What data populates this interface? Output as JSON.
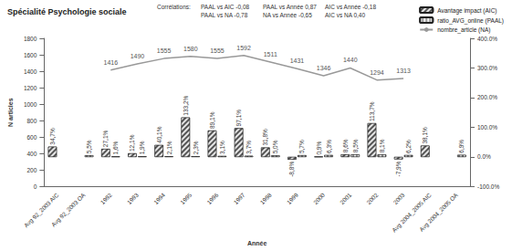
{
  "chart_data": {
    "type": "bar",
    "title": "Spécialité Psychologie sociale",
    "annotations": [
      "Corrélations:",
      "PAAL vs AIC -0,08",
      "PAAL vs NA -0,78",
      "PAAL vs Année 0,87",
      "NA vs Année -0,65",
      "AIC vs Année -0,18",
      "AIC vs NA 0,40"
    ],
    "x_label": "Année",
    "y_label": "N articles",
    "categories": [
      "Avg 92_2003 AIC",
      "Avg 92_2003 OA",
      "1992",
      "1993",
      "1994",
      "1995",
      "1996",
      "1997",
      "1998",
      "1999",
      "2000",
      "2001",
      "2002",
      "2003",
      "Avg 2004_2005 AIC",
      "Avg 2004_2005 OA"
    ],
    "series": [
      {
        "name": "Avantage impact (AIC)",
        "type": "bar",
        "axis": "y2",
        "color": "#555555",
        "values": [
          34.7,
          null,
          27.1,
          12.1,
          40.1,
          133.2,
          89.1,
          97.1,
          31.8,
          -8.8,
          0.9,
          8.6,
          113.7,
          -7.9,
          38.1,
          null
        ],
        "value_labels": [
          "34,7%",
          null,
          "27,1%",
          "12,1%",
          "40,1%",
          "133,2%",
          "89,1%",
          "97,1%",
          "31,8%",
          "-8,8%",
          "0,9%",
          "8,6%",
          "113,7%",
          "-7,9%",
          "38,1%",
          null
        ]
      },
      {
        "name": "ratio_AVG_online (PAAL)",
        "type": "bar",
        "axis": "y2",
        "color": "#9a9a9a",
        "values": [
          null,
          5.5,
          1.6,
          1.9,
          2.1,
          2.3,
          3.1,
          3.7,
          5.0,
          5.7,
          6.3,
          8.5,
          8.1,
          6.2,
          null,
          6.9
        ],
        "value_labels": [
          null,
          "5,5%",
          "1,6%",
          "1,9%",
          "2,1%",
          "2,3%",
          "3,1%",
          "3,7%",
          "5,0%",
          "5,7%",
          "6,3%",
          "8,5%",
          "8,1%",
          "6,2%",
          null,
          "6,9%"
        ]
      },
      {
        "name": "nombre_article (NA)",
        "type": "line",
        "color": "#999999",
        "values": [
          null,
          null,
          1416,
          1490,
          1555,
          1580,
          1555,
          1592,
          1511,
          1431,
          1346,
          1440,
          1294,
          1313,
          null,
          null
        ]
      }
    ],
    "ylim": [
      0,
      1800
    ],
    "yticks": [
      0,
      200,
      400,
      600,
      800,
      1000,
      1200,
      1400,
      1600,
      1800
    ],
    "y2lim": [
      -100,
      400
    ],
    "y2ticks": [
      {
        "value": -100,
        "label": "-100.0%"
      },
      {
        "value": 0,
        "label": "0.0%"
      },
      {
        "value": 100,
        "label": "100.0%"
      },
      {
        "value": 200,
        "label": "200.0%"
      },
      {
        "value": 300,
        "label": "300.0%"
      },
      {
        "value": 400,
        "label": "400.0%"
      }
    ],
    "legend": "top-right",
    "grid": false,
    "data_labels": true
  }
}
